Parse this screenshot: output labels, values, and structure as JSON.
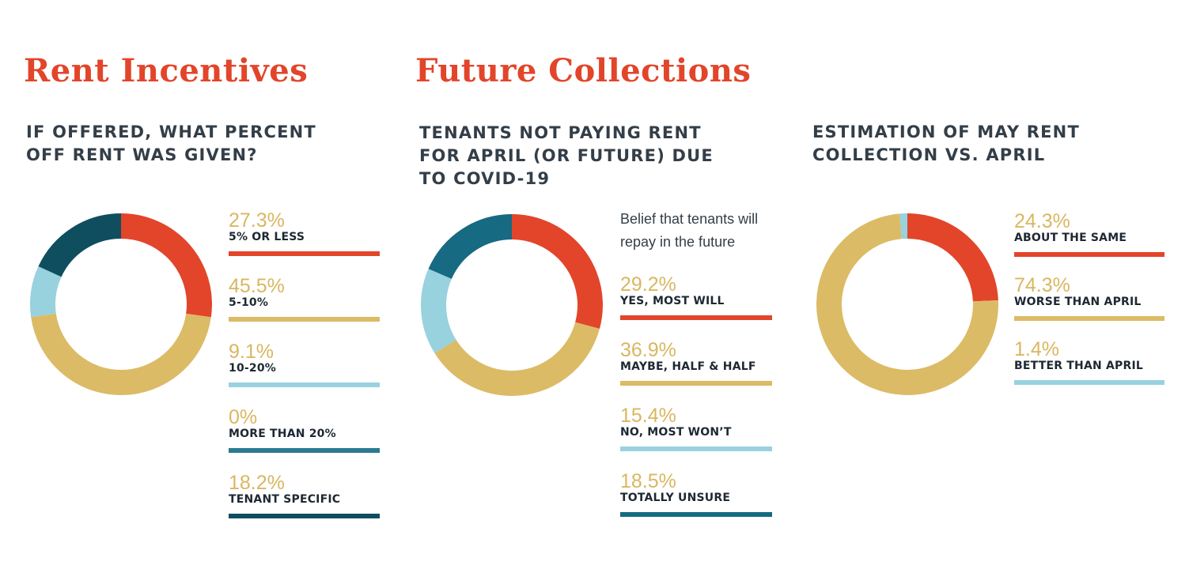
{
  "colors": {
    "title": "#e2452a",
    "heading": "#333e48",
    "percent": "#d9b761",
    "red": "#e2452a",
    "gold": "#dcbb66",
    "light_blue": "#97d2de",
    "mid_teal": "#2a7a91",
    "dark_teal": "#0f4e5f"
  },
  "sections": [
    {
      "title": "Rent Incentives"
    },
    {
      "title": "Future Collections"
    }
  ],
  "chart_data": [
    {
      "type": "pie",
      "donut": true,
      "title_lines": [
        "IF OFFERED, WHAT PERCENT",
        "OFF RENT WAS GIVEN?"
      ],
      "categories": [
        "5% OR LESS",
        "5-10%",
        "10-20%",
        "MORE THAN 20%",
        "TENANT SPECIFIC"
      ],
      "values": [
        27.3,
        45.5,
        9.1,
        0,
        18.2
      ],
      "value_labels": [
        "27.3%",
        "45.5%",
        "9.1%",
        "0%",
        "18.2%"
      ],
      "colors": [
        "#e2452a",
        "#dcbb66",
        "#97d2de",
        "#2a7a91",
        "#0f4e5f"
      ]
    },
    {
      "type": "pie",
      "donut": true,
      "title_lines": [
        "TENANTS NOT PAYING RENT",
        "FOR APRIL (OR FUTURE) DUE",
        "TO COVID-19"
      ],
      "note_lines": [
        "Belief that tenants will",
        "repay in the future"
      ],
      "categories": [
        "YES, MOST WILL",
        "MAYBE, HALF & HALF",
        "NO, MOST WON’T",
        "TOTALLY UNSURE"
      ],
      "values": [
        29.2,
        36.9,
        15.4,
        18.5
      ],
      "value_labels": [
        "29.2%",
        "36.9%",
        "15.4%",
        "18.5%"
      ],
      "colors": [
        "#e2452a",
        "#dcbb66",
        "#97d2de",
        "#166a81"
      ]
    },
    {
      "type": "pie",
      "donut": true,
      "title_lines": [
        "ESTIMATION OF MAY RENT",
        "COLLECTION VS. APRIL"
      ],
      "categories": [
        "ABOUT THE SAME",
        "WORSE THAN APRIL",
        "BETTER THAN APRIL"
      ],
      "values": [
        24.3,
        74.3,
        1.4
      ],
      "value_labels": [
        "24.3%",
        "74.3%",
        "1.4%"
      ],
      "colors": [
        "#e2452a",
        "#dcbb66",
        "#97d2de"
      ]
    }
  ]
}
